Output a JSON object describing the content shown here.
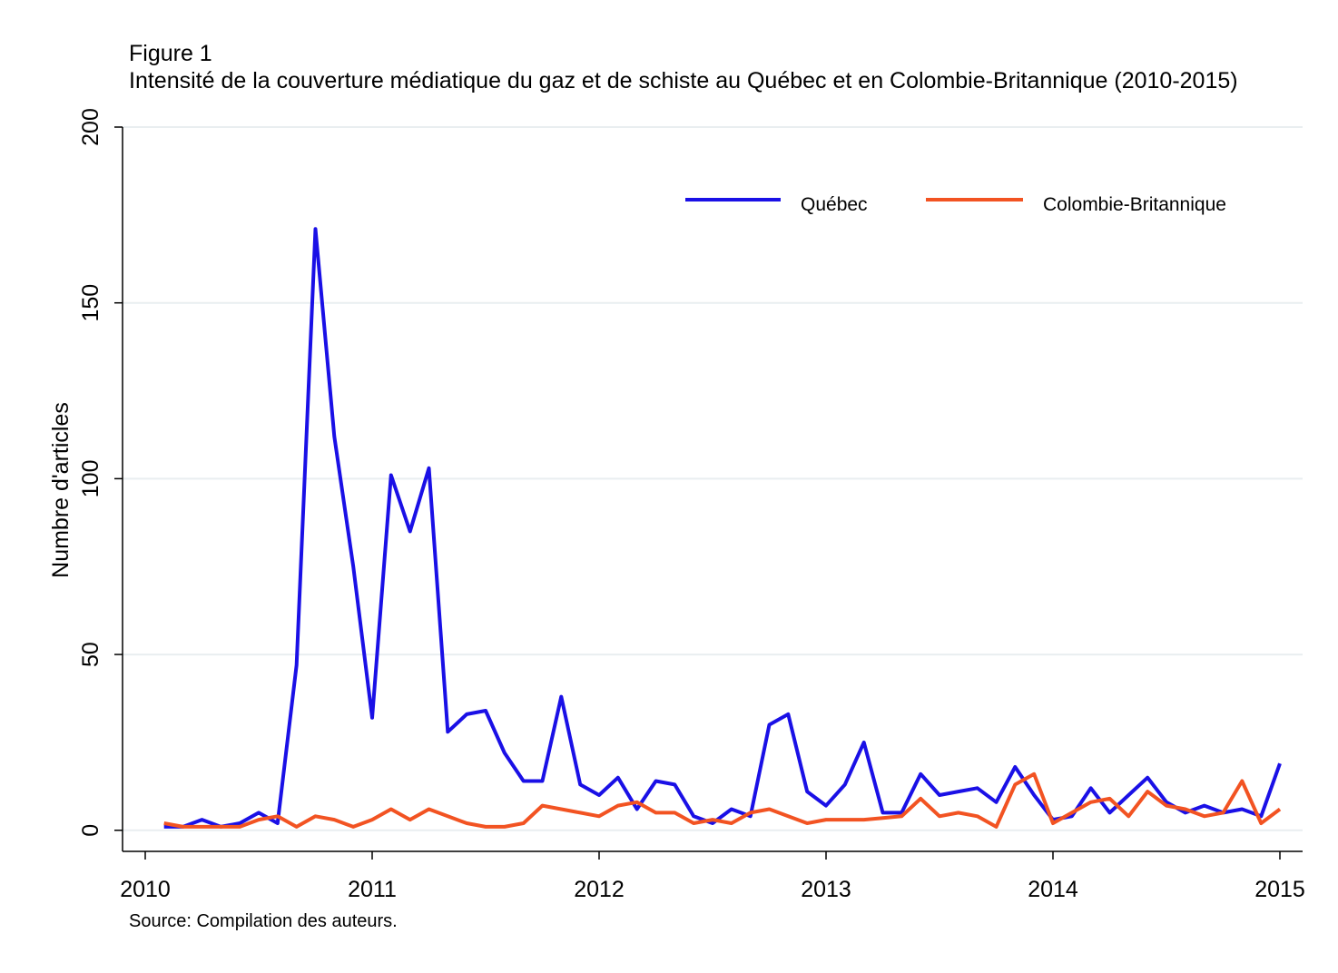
{
  "figure": {
    "label": "Figure 1",
    "title": "Intensité de la couverture médiatique du gaz et de schiste au Québec et en Colombie-Britannique (2010-2015)",
    "source": "Source: Compilation des auteurs."
  },
  "chart_data": {
    "type": "line",
    "title": "Intensité de la couverture médiatique du gaz et de schiste au Québec et en Colombie-Britannique (2010-2015)",
    "xlabel": "",
    "ylabel": "Numbre d'articles",
    "xlim": [
      2009.9,
      2015.1
    ],
    "ylim": [
      -6,
      200
    ],
    "xticks": [
      2010,
      2011,
      2012,
      2013,
      2014,
      2015
    ],
    "yticks": [
      0,
      50,
      100,
      150,
      200
    ],
    "grid": true,
    "legend": "top-right",
    "series": [
      {
        "name": "Québec",
        "color": "#1a10e6",
        "points": [
          [
            2010.083,
            1
          ],
          [
            2010.167,
            1
          ],
          [
            2010.25,
            3
          ],
          [
            2010.333,
            1
          ],
          [
            2010.417,
            2
          ],
          [
            2010.5,
            5
          ],
          [
            2010.583,
            2
          ],
          [
            2010.667,
            47
          ],
          [
            2010.75,
            171
          ],
          [
            2010.833,
            112
          ],
          [
            2010.917,
            75
          ],
          [
            2011.0,
            32
          ],
          [
            2011.083,
            101
          ],
          [
            2011.167,
            85
          ],
          [
            2011.25,
            103
          ],
          [
            2011.333,
            28
          ],
          [
            2011.417,
            33
          ],
          [
            2011.5,
            34
          ],
          [
            2011.583,
            22
          ],
          [
            2011.667,
            14
          ],
          [
            2011.75,
            14
          ],
          [
            2011.833,
            38
          ],
          [
            2011.917,
            13
          ],
          [
            2012.0,
            10
          ],
          [
            2012.083,
            15
          ],
          [
            2012.167,
            6
          ],
          [
            2012.25,
            14
          ],
          [
            2012.333,
            13
          ],
          [
            2012.417,
            4
          ],
          [
            2012.5,
            2
          ],
          [
            2012.583,
            6
          ],
          [
            2012.667,
            4
          ],
          [
            2012.75,
            30
          ],
          [
            2012.833,
            33
          ],
          [
            2012.917,
            11
          ],
          [
            2013.0,
            7
          ],
          [
            2013.083,
            13
          ],
          [
            2013.167,
            25
          ],
          [
            2013.25,
            5
          ],
          [
            2013.333,
            5
          ],
          [
            2013.417,
            16
          ],
          [
            2013.5,
            10
          ],
          [
            2013.583,
            11
          ],
          [
            2013.667,
            12
          ],
          [
            2013.75,
            8
          ],
          [
            2013.833,
            18
          ],
          [
            2013.917,
            10
          ],
          [
            2014.0,
            3
          ],
          [
            2014.083,
            4
          ],
          [
            2014.167,
            12
          ],
          [
            2014.25,
            5
          ],
          [
            2014.333,
            10
          ],
          [
            2014.417,
            15
          ],
          [
            2014.5,
            8
          ],
          [
            2014.583,
            5
          ],
          [
            2014.667,
            7
          ],
          [
            2014.75,
            5
          ],
          [
            2014.833,
            6
          ],
          [
            2014.917,
            4
          ],
          [
            2015.0,
            19
          ]
        ]
      },
      {
        "name": "Colombie-Britannique",
        "color": "#f25322",
        "points": [
          [
            2010.083,
            2
          ],
          [
            2010.167,
            1
          ],
          [
            2010.25,
            1
          ],
          [
            2010.333,
            1
          ],
          [
            2010.417,
            1
          ],
          [
            2010.5,
            3
          ],
          [
            2010.583,
            4
          ],
          [
            2010.667,
            1
          ],
          [
            2010.75,
            4
          ],
          [
            2010.833,
            3
          ],
          [
            2010.917,
            1
          ],
          [
            2011.0,
            3
          ],
          [
            2011.083,
            6
          ],
          [
            2011.167,
            3
          ],
          [
            2011.25,
            6
          ],
          [
            2011.333,
            4
          ],
          [
            2011.417,
            2
          ],
          [
            2011.5,
            1
          ],
          [
            2011.583,
            1
          ],
          [
            2011.667,
            2
          ],
          [
            2011.75,
            7
          ],
          [
            2011.833,
            6
          ],
          [
            2011.917,
            5
          ],
          [
            2012.0,
            4
          ],
          [
            2012.083,
            7
          ],
          [
            2012.167,
            8
          ],
          [
            2012.25,
            5
          ],
          [
            2012.333,
            5
          ],
          [
            2012.417,
            2
          ],
          [
            2012.5,
            3
          ],
          [
            2012.583,
            2
          ],
          [
            2012.667,
            5
          ],
          [
            2012.75,
            6
          ],
          [
            2012.833,
            4
          ],
          [
            2012.917,
            2
          ],
          [
            2013.0,
            3
          ],
          [
            2013.083,
            3
          ],
          [
            2013.167,
            3
          ],
          [
            2013.25,
            3.5
          ],
          [
            2013.333,
            4
          ],
          [
            2013.417,
            9
          ],
          [
            2013.5,
            4
          ],
          [
            2013.583,
            5
          ],
          [
            2013.667,
            4
          ],
          [
            2013.75,
            1
          ],
          [
            2013.833,
            13
          ],
          [
            2013.917,
            16
          ],
          [
            2014.0,
            2
          ],
          [
            2014.083,
            5
          ],
          [
            2014.167,
            8
          ],
          [
            2014.25,
            9
          ],
          [
            2014.333,
            4
          ],
          [
            2014.417,
            11
          ],
          [
            2014.5,
            7
          ],
          [
            2014.583,
            6
          ],
          [
            2014.667,
            4
          ],
          [
            2014.75,
            5
          ],
          [
            2014.833,
            14
          ],
          [
            2014.917,
            2
          ],
          [
            2015.0,
            6
          ]
        ]
      }
    ]
  }
}
